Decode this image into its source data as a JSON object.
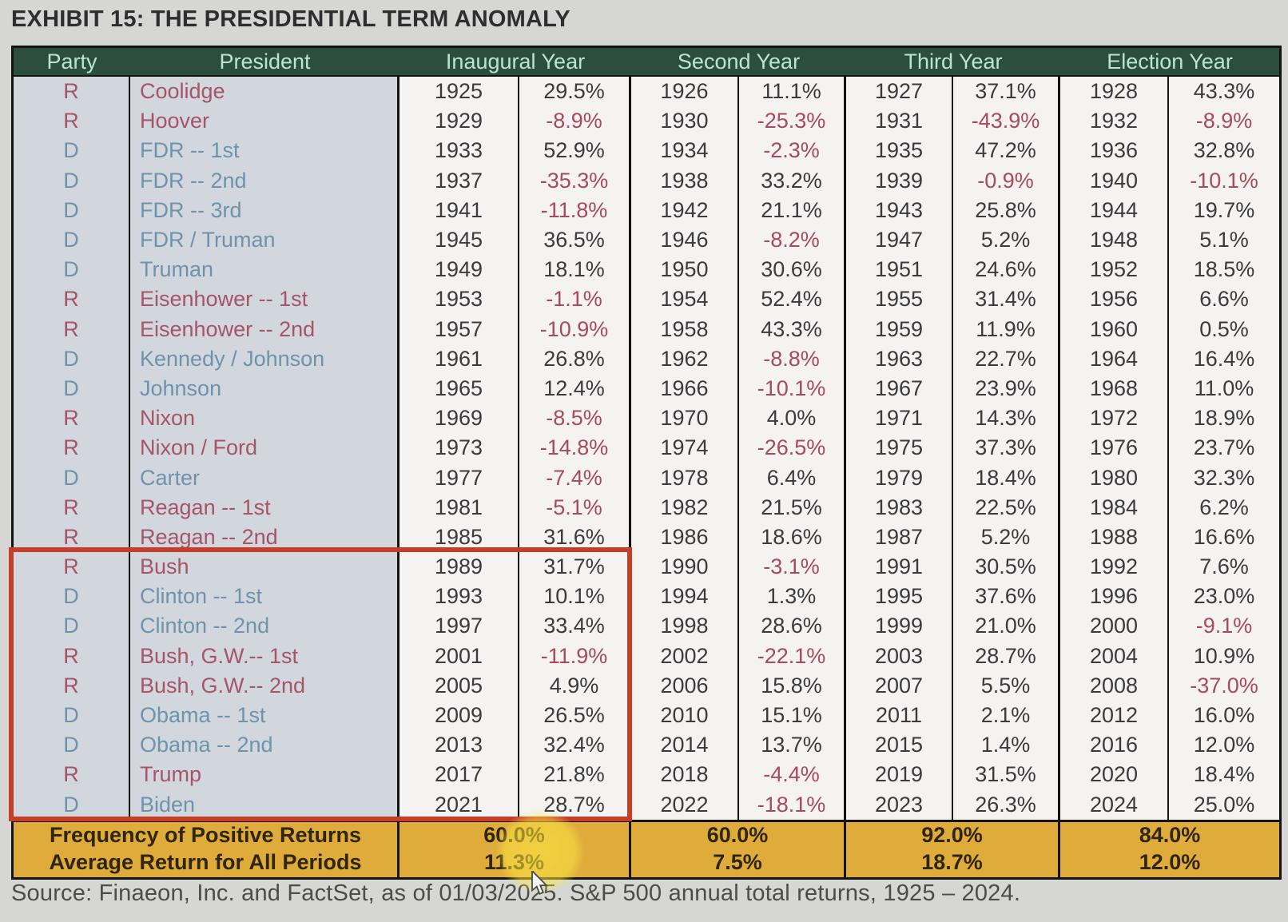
{
  "title": "EXHIBIT 15: THE PRESIDENTIAL TERM ANOMALY",
  "source": "Source: Finaeon, Inc. and FactSet, as of 01/03/2025. S&P 500 annual total returns, 1925 – 2024.",
  "chart_data": {
    "type": "table",
    "title": "EXHIBIT 15: THE PRESIDENTIAL TERM ANOMALY",
    "header_groups": [
      {
        "label": "Party",
        "span": 1
      },
      {
        "label": "President",
        "span": 1
      },
      {
        "label": "Inaugural Year",
        "span": 2
      },
      {
        "label": "Second Year",
        "span": 2
      },
      {
        "label": "Third Year",
        "span": 2
      },
      {
        "label": "Election Year",
        "span": 2
      }
    ],
    "rows": [
      {
        "party": "R",
        "president": "Coolidge",
        "values": [
          "1925",
          "29.5%",
          "1926",
          "11.1%",
          "1927",
          "37.1%",
          "1928",
          "43.3%"
        ]
      },
      {
        "party": "R",
        "president": "Hoover",
        "values": [
          "1929",
          "-8.9%",
          "1930",
          "-25.3%",
          "1931",
          "-43.9%",
          "1932",
          "-8.9%"
        ]
      },
      {
        "party": "D",
        "president": "FDR -- 1st",
        "values": [
          "1933",
          "52.9%",
          "1934",
          "-2.3%",
          "1935",
          "47.2%",
          "1936",
          "32.8%"
        ]
      },
      {
        "party": "D",
        "president": "FDR -- 2nd",
        "values": [
          "1937",
          "-35.3%",
          "1938",
          "33.2%",
          "1939",
          "-0.9%",
          "1940",
          "-10.1%"
        ]
      },
      {
        "party": "D",
        "president": "FDR -- 3rd",
        "values": [
          "1941",
          "-11.8%",
          "1942",
          "21.1%",
          "1943",
          "25.8%",
          "1944",
          "19.7%"
        ]
      },
      {
        "party": "D",
        "president": "FDR / Truman",
        "values": [
          "1945",
          "36.5%",
          "1946",
          "-8.2%",
          "1947",
          "5.2%",
          "1948",
          "5.1%"
        ]
      },
      {
        "party": "D",
        "president": "Truman",
        "values": [
          "1949",
          "18.1%",
          "1950",
          "30.6%",
          "1951",
          "24.6%",
          "1952",
          "18.5%"
        ]
      },
      {
        "party": "R",
        "president": "Eisenhower -- 1st",
        "values": [
          "1953",
          "-1.1%",
          "1954",
          "52.4%",
          "1955",
          "31.4%",
          "1956",
          "6.6%"
        ]
      },
      {
        "party": "R",
        "president": "Eisenhower -- 2nd",
        "values": [
          "1957",
          "-10.9%",
          "1958",
          "43.3%",
          "1959",
          "11.9%",
          "1960",
          "0.5%"
        ]
      },
      {
        "party": "D",
        "president": "Kennedy / Johnson",
        "values": [
          "1961",
          "26.8%",
          "1962",
          "-8.8%",
          "1963",
          "22.7%",
          "1964",
          "16.4%"
        ]
      },
      {
        "party": "D",
        "president": "Johnson",
        "values": [
          "1965",
          "12.4%",
          "1966",
          "-10.1%",
          "1967",
          "23.9%",
          "1968",
          "11.0%"
        ]
      },
      {
        "party": "R",
        "president": "Nixon",
        "values": [
          "1969",
          "-8.5%",
          "1970",
          "4.0%",
          "1971",
          "14.3%",
          "1972",
          "18.9%"
        ]
      },
      {
        "party": "R",
        "president": "Nixon / Ford",
        "values": [
          "1973",
          "-14.8%",
          "1974",
          "-26.5%",
          "1975",
          "37.3%",
          "1976",
          "23.7%"
        ]
      },
      {
        "party": "D",
        "president": "Carter",
        "values": [
          "1977",
          "-7.4%",
          "1978",
          "6.4%",
          "1979",
          "18.4%",
          "1980",
          "32.3%"
        ]
      },
      {
        "party": "R",
        "president": "Reagan -- 1st",
        "values": [
          "1981",
          "-5.1%",
          "1982",
          "21.5%",
          "1983",
          "22.5%",
          "1984",
          "6.2%"
        ]
      },
      {
        "party": "R",
        "president": "Reagan -- 2nd",
        "values": [
          "1985",
          "31.6%",
          "1986",
          "18.6%",
          "1987",
          "5.2%",
          "1988",
          "16.6%"
        ]
      },
      {
        "party": "R",
        "president": "Bush",
        "values": [
          "1989",
          "31.7%",
          "1990",
          "-3.1%",
          "1991",
          "30.5%",
          "1992",
          "7.6%"
        ]
      },
      {
        "party": "D",
        "president": "Clinton -- 1st",
        "values": [
          "1993",
          "10.1%",
          "1994",
          "1.3%",
          "1995",
          "37.6%",
          "1996",
          "23.0%"
        ]
      },
      {
        "party": "D",
        "president": "Clinton -- 2nd",
        "values": [
          "1997",
          "33.4%",
          "1998",
          "28.6%",
          "1999",
          "21.0%",
          "2000",
          "-9.1%"
        ]
      },
      {
        "party": "R",
        "president": "Bush, G.W.-- 1st",
        "values": [
          "2001",
          "-11.9%",
          "2002",
          "-22.1%",
          "2003",
          "28.7%",
          "2004",
          "10.9%"
        ]
      },
      {
        "party": "R",
        "president": "Bush, G.W.-- 2nd",
        "values": [
          "2005",
          "4.9%",
          "2006",
          "15.8%",
          "2007",
          "5.5%",
          "2008",
          "-37.0%"
        ]
      },
      {
        "party": "D",
        "president": "Obama -- 1st",
        "values": [
          "2009",
          "26.5%",
          "2010",
          "15.1%",
          "2011",
          "2.1%",
          "2012",
          "16.0%"
        ]
      },
      {
        "party": "D",
        "president": "Obama -- 2nd",
        "values": [
          "2013",
          "32.4%",
          "2014",
          "13.7%",
          "2015",
          "1.4%",
          "2016",
          "12.0%"
        ]
      },
      {
        "party": "R",
        "president": "Trump",
        "values": [
          "2017",
          "21.8%",
          "2018",
          "-4.4%",
          "2019",
          "31.5%",
          "2020",
          "18.4%"
        ]
      },
      {
        "party": "D",
        "president": "Biden",
        "values": [
          "2021",
          "28.7%",
          "2022",
          "-18.1%",
          "2023",
          "26.3%",
          "2024",
          "25.0%"
        ]
      }
    ],
    "summary": [
      {
        "label": "Frequency of Positive Returns",
        "values": [
          "60.0%",
          "60.0%",
          "92.0%",
          "84.0%"
        ]
      },
      {
        "label": "Average Return for All Periods",
        "values": [
          "11.3%",
          "7.5%",
          "18.7%",
          "12.0%"
        ]
      }
    ]
  },
  "annotations": {
    "red_box": {
      "from_row": "Bush",
      "to_row": "Biden",
      "columns": "Party through Inaugural Year return",
      "color": "#c63e2a"
    },
    "yellow_spotlight": {
      "over": "Average Return for All Periods, Inaugural Year: 11.3%",
      "color": "#fde841"
    }
  },
  "colors": {
    "page_background": "#d6d6d4",
    "header_green": "#2b4e3d",
    "header_text": "#b9e6d1",
    "left_columns_background": "#d2d7dd",
    "data_background": "#f4f3f1",
    "positive_text": "#3b3b3d",
    "negative_text": "#a64a5e",
    "republican": "#a65468",
    "democrat": "#6e93ac",
    "summary_gold": "#dfac3c",
    "summary_text": "#30250f",
    "red_box": "#c63e2a",
    "grid_lines": "#141414"
  }
}
